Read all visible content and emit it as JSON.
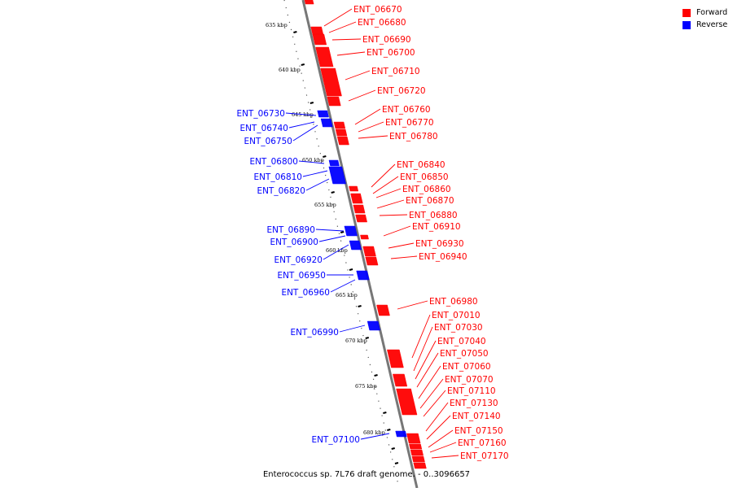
{
  "caption": "Enterococcus sp. 7L76 draft genome. - 0..3096657",
  "colors": {
    "forward": "#ff0000",
    "reverse": "#0000ff",
    "backbone": "#777777"
  },
  "legend": [
    {
      "label": "Forward",
      "strand": "forward"
    },
    {
      "label": "Reverse",
      "strand": "reverse"
    }
  ],
  "ticks": [
    "635 kbp",
    "640 kbp",
    "645 kbp",
    "650 kbp",
    "655 kbp",
    "660 kbp",
    "665 kbp",
    "670 kbp",
    "675 kbp",
    "680 kbp"
  ],
  "forward_genes": [
    "ENT_06670",
    "ENT_06680",
    "ENT_06690",
    "ENT_06700",
    "ENT_06710",
    "ENT_06720",
    "ENT_06760",
    "ENT_06770",
    "ENT_06780",
    "ENT_06840",
    "ENT_06850",
    "ENT_06860",
    "ENT_06870",
    "ENT_06880",
    "ENT_06910",
    "ENT_06930",
    "ENT_06940",
    "ENT_06980",
    "ENT_07010",
    "ENT_07030",
    "ENT_07040",
    "ENT_07050",
    "ENT_07060",
    "ENT_07070",
    "ENT_07110",
    "ENT_07130",
    "ENT_07140",
    "ENT_07150",
    "ENT_07160",
    "ENT_07170"
  ],
  "reverse_genes": [
    "ENT_06730",
    "ENT_06740",
    "ENT_06750",
    "ENT_06800",
    "ENT_06810",
    "ENT_06820",
    "ENT_06890",
    "ENT_06900",
    "ENT_06920",
    "ENT_06950",
    "ENT_06960",
    "ENT_06990",
    "ENT_07100"
  ]
}
